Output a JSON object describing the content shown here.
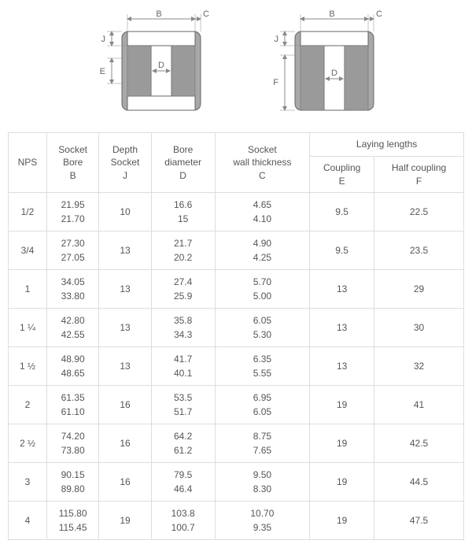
{
  "diagram": {
    "labels": {
      "B": "B",
      "C": "C",
      "J": "J",
      "E": "E",
      "F": "F",
      "D": "D"
    },
    "colors": {
      "body_outer": "#a8a8a8",
      "body_inner": "#9a9a9a",
      "socket": "#ffffff",
      "bore": "#ffffff",
      "stroke": "#666666",
      "dim_line": "#888888"
    }
  },
  "table": {
    "headers": {
      "nps": "NPS",
      "socket_bore": "Socket\nBore\nB",
      "depth_socket": "Depth\nSocket\nJ",
      "bore_diameter": "Bore\ndiameter\nD",
      "wall_thickness": "Socket\nwall thickness\nC",
      "laying_lengths": "Laying lengths",
      "coupling": "Coupling\nE",
      "half_coupling": "Half coupling\nF"
    },
    "rows": [
      {
        "nps": "1/2",
        "B1": "21.95",
        "B2": "21.70",
        "J": "10",
        "D1": "16.6",
        "D2": "15",
        "C1": "4.65",
        "C2": "4.10",
        "E": "9.5",
        "F": "22.5"
      },
      {
        "nps": "3/4",
        "B1": "27.30",
        "B2": "27.05",
        "J": "13",
        "D1": "21.7",
        "D2": "20.2",
        "C1": "4.90",
        "C2": "4.25",
        "E": "9.5",
        "F": "23.5"
      },
      {
        "nps": "1",
        "B1": "34.05",
        "B2": "33.80",
        "J": "13",
        "D1": "27.4",
        "D2": "25.9",
        "C1": "5.70",
        "C2": "5.00",
        "E": "13",
        "F": "29"
      },
      {
        "nps": "1 ¼",
        "B1": "42.80",
        "B2": "42.55",
        "J": "13",
        "D1": "35.8",
        "D2": "34.3",
        "C1": "6.05",
        "C2": "5.30",
        "E": "13",
        "F": "30"
      },
      {
        "nps": "1 ½",
        "B1": "48.90",
        "B2": "48.65",
        "J": "13",
        "D1": "41.7",
        "D2": "40.1",
        "C1": "6.35",
        "C2": "5.55",
        "E": "13",
        "F": "32"
      },
      {
        "nps": "2",
        "B1": "61.35",
        "B2": "61.10",
        "J": "16",
        "D1": "53.5",
        "D2": "51.7",
        "C1": "6.95",
        "C2": "6.05",
        "E": "19",
        "F": "41"
      },
      {
        "nps": "2 ½",
        "B1": "74.20",
        "B2": "73.80",
        "J": "16",
        "D1": "64.2",
        "D2": "61.2",
        "C1": "8.75",
        "C2": "7.65",
        "E": "19",
        "F": "42.5"
      },
      {
        "nps": "3",
        "B1": "90.15",
        "B2": "89.80",
        "J": "16",
        "D1": "79.5",
        "D2": "46.4",
        "C1": "9.50",
        "C2": "8.30",
        "E": "19",
        "F": "44.5"
      },
      {
        "nps": "4",
        "B1": "115.80",
        "B2": "115.45",
        "J": "19",
        "D1": "103.8",
        "D2": "100.7",
        "C1": "10.70",
        "C2": "9.35",
        "E": "19",
        "F": "47.5"
      }
    ]
  }
}
